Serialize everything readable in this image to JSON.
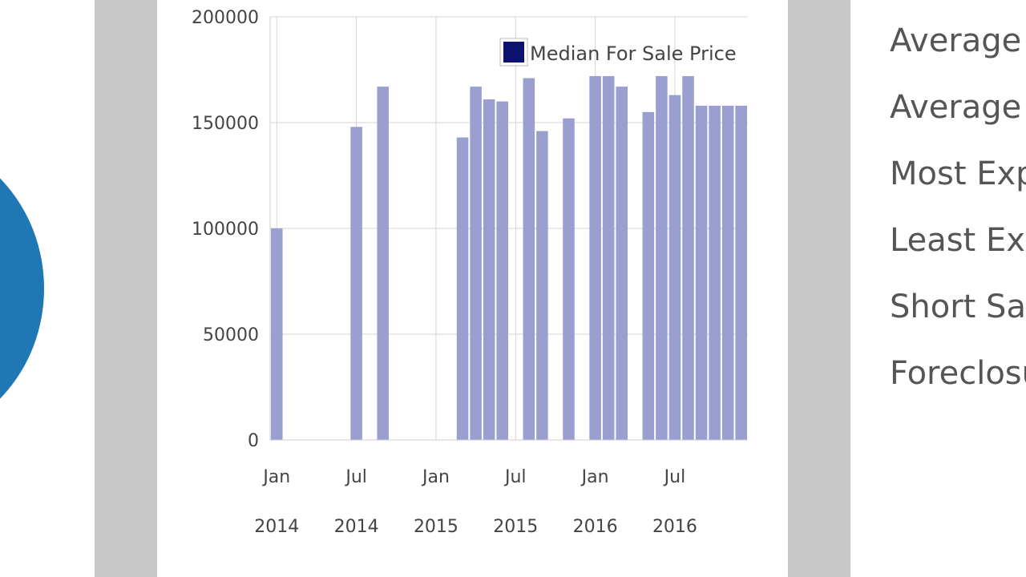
{
  "left_panel": {
    "circle_color": "#1f77b4"
  },
  "stats": {
    "labels": [
      "Average",
      "Average",
      "Most Exp",
      "Least Exp",
      "Short Sal",
      "Foreclosu"
    ]
  },
  "chart_data": {
    "type": "bar",
    "title": "",
    "xlabel": "",
    "ylabel": "",
    "ylim": [
      0,
      200000
    ],
    "y_ticks": [
      "0",
      "50000",
      "100000",
      "150000",
      "200000"
    ],
    "x_range": [
      "2014-01",
      "2016-12"
    ],
    "x_tick_labels": [
      {
        "month": "Jan",
        "year": "2014",
        "date": "2014-01"
      },
      {
        "month": "Jul",
        "year": "2014",
        "date": "2014-07"
      },
      {
        "month": "Jan",
        "year": "2015",
        "date": "2015-01"
      },
      {
        "month": "Jul",
        "year": "2015",
        "date": "2015-07"
      },
      {
        "month": "Jan",
        "year": "2016",
        "date": "2016-01"
      },
      {
        "month": "Jul",
        "year": "2016",
        "date": "2016-07"
      }
    ],
    "grid": true,
    "legend_position": "top-right",
    "bar_color": "#9a9fcf",
    "legend_swatch_color": "#0b1270",
    "series": [
      {
        "name": "Median For Sale Price",
        "points": [
          {
            "x": "2014-01",
            "y": 100000
          },
          {
            "x": "2014-07",
            "y": 148000
          },
          {
            "x": "2014-09",
            "y": 167000
          },
          {
            "x": "2015-03",
            "y": 143000
          },
          {
            "x": "2015-04",
            "y": 167000
          },
          {
            "x": "2015-05",
            "y": 161000
          },
          {
            "x": "2015-06",
            "y": 160000
          },
          {
            "x": "2015-08",
            "y": 171000
          },
          {
            "x": "2015-09",
            "y": 146000
          },
          {
            "x": "2015-11",
            "y": 152000
          },
          {
            "x": "2016-01",
            "y": 172000
          },
          {
            "x": "2016-02",
            "y": 172000
          },
          {
            "x": "2016-03",
            "y": 167000
          },
          {
            "x": "2016-05",
            "y": 155000
          },
          {
            "x": "2016-06",
            "y": 172000
          },
          {
            "x": "2016-07",
            "y": 163000
          },
          {
            "x": "2016-08",
            "y": 172000
          },
          {
            "x": "2016-09",
            "y": 158000
          },
          {
            "x": "2016-10",
            "y": 158000
          },
          {
            "x": "2016-11",
            "y": 158000
          },
          {
            "x": "2016-12",
            "y": 158000
          }
        ]
      }
    ]
  }
}
